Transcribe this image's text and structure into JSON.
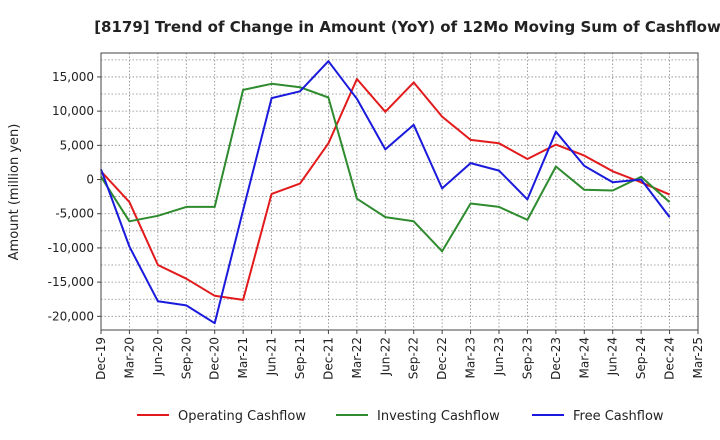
{
  "chart_data": {
    "type": "line",
    "title": "[8179]  Trend of Change in Amount (YoY) of 12Mo Moving Sum of Cashflows",
    "xlabel": "",
    "ylabel": "Amount (million yen)",
    "ylim": [
      -22000,
      18500
    ],
    "yticks": [
      15000,
      10000,
      5000,
      0,
      -5000,
      -10000,
      -15000,
      -20000
    ],
    "ytick_labels": [
      "15,000",
      "10,000",
      "5,000",
      "0",
      "-5,000",
      "-10,000",
      "-15,000",
      "-20,000"
    ],
    "categories": [
      "Dec-19",
      "Mar-20",
      "Jun-20",
      "Sep-20",
      "Dec-20",
      "Mar-21",
      "Jun-21",
      "Sep-21",
      "Dec-21",
      "Mar-22",
      "Jun-22",
      "Sep-22",
      "Dec-22",
      "Mar-23",
      "Jun-23",
      "Sep-23",
      "Dec-23",
      "Mar-24",
      "Jun-24",
      "Sep-24",
      "Dec-24",
      "Mar-25"
    ],
    "grid": true,
    "legend_position": "bottom",
    "series": [
      {
        "name": "Operating Cashflow",
        "color": "#e31a1c",
        "values": [
          1200,
          -3300,
          -12500,
          -14500,
          -17000,
          -17600,
          -2100,
          -600,
          5300,
          14700,
          9900,
          14200,
          9200,
          5800,
          5300,
          3000,
          5100,
          3500,
          1200,
          -400,
          -2200,
          null
        ]
      },
      {
        "name": "Investing Cashflow",
        "color": "#2e8b2e",
        "values": [
          400,
          -6100,
          -5300,
          -4000,
          -4000,
          13100,
          14000,
          13500,
          12000,
          -2800,
          -5500,
          -6100,
          -10500,
          -3500,
          -4000,
          -5900,
          1900,
          -1500,
          -1600,
          400,
          -3300,
          null
        ]
      },
      {
        "name": "Free Cashflow",
        "color": "#1a1adc",
        "values": [
          1500,
          -9800,
          -17800,
          -18400,
          -21000,
          -4500,
          11900,
          12900,
          17300,
          11800,
          4400,
          8000,
          -1300,
          2400,
          1300,
          -2900,
          7000,
          2000,
          -400,
          0,
          -5500,
          null
        ]
      }
    ]
  }
}
